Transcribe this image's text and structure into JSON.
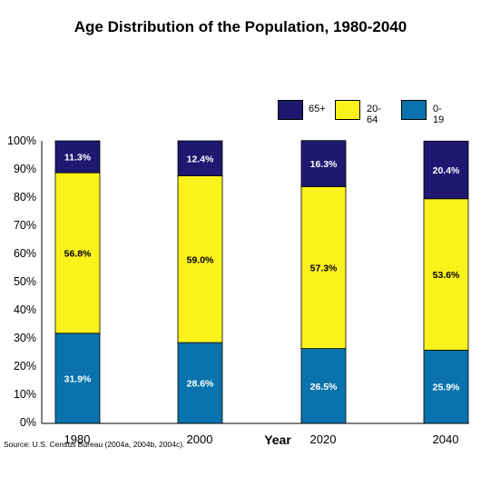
{
  "title": "Age Distribution of the Population, 1980-2040",
  "source": "Source: U.S. Census Bureau (2004a, 2004b, 2004c).",
  "chart_data": {
    "type": "bar",
    "stacked": true,
    "title": "Age Distribution of the Population, 1980-2040",
    "xlabel": "Year",
    "ylabel": "",
    "ylim": [
      0,
      100
    ],
    "y_ticks": [
      "0%",
      "10%",
      "20%",
      "30%",
      "40%",
      "50%",
      "60%",
      "70%",
      "80%",
      "90%",
      "100%"
    ],
    "categories": [
      "1980",
      "2000",
      "2020",
      "2040"
    ],
    "series": [
      {
        "name": "0-19",
        "color": "#0a73ad",
        "values": [
          31.9,
          28.6,
          26.5,
          25.9
        ],
        "labels": [
          "31.9%",
          "28.6%",
          "26.5%",
          "25.9%"
        ]
      },
      {
        "name": "20-64",
        "color": "#fcf21b",
        "values": [
          56.8,
          59.0,
          57.3,
          53.6
        ],
        "labels": [
          "56.8%",
          "59.0%",
          "57.3%",
          "53.6%"
        ]
      },
      {
        "name": "65+",
        "color": "#1f1870",
        "values": [
          11.3,
          12.4,
          16.3,
          20.4
        ],
        "labels": [
          "11.3%",
          "12.4%",
          "16.3%",
          "20.4%"
        ]
      }
    ],
    "legend": {
      "placement": "top-right",
      "order": [
        "65+",
        "20-64",
        "0-19"
      ]
    }
  }
}
